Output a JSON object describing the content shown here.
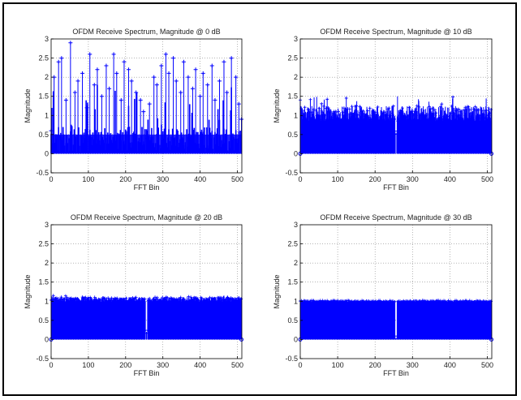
{
  "chart_data": [
    {
      "type": "stem",
      "title": "OFDM Receive Spectrum, Magnitude @ 0 dB",
      "xlabel": "FFT Bin",
      "ylabel": "Magnitude",
      "xlim": [
        0,
        512
      ],
      "ylim": [
        -0.5,
        3
      ],
      "xticks": [
        "0",
        "100",
        "200",
        "300",
        "400",
        "500"
      ],
      "yticks": [
        "-0.5",
        "0",
        "0.5",
        "1",
        "1.5",
        "2",
        "2.5",
        "3"
      ],
      "grid": true,
      "color": "#0000ff",
      "series": [
        {
          "bins": [
            0,
            8,
            20,
            28,
            40,
            52,
            64,
            72,
            84,
            96,
            104,
            116,
            124,
            136,
            148,
            156,
            168,
            176,
            188,
            196,
            208,
            216,
            228,
            240,
            248,
            256,
            264,
            276,
            284,
            296,
            308,
            316,
            328,
            336,
            348,
            356,
            368,
            380,
            388,
            400,
            408,
            420,
            432,
            440,
            452,
            464,
            472,
            484,
            496,
            504,
            511
          ],
          "magnitude": [
            0.6,
            2.0,
            2.4,
            2.5,
            1.4,
            2.9,
            1.6,
            1.9,
            2.1,
            1.2,
            2.6,
            1.8,
            2.2,
            1.5,
            2.3,
            1.7,
            2.6,
            2.1,
            1.4,
            2.4,
            2.2,
            1.9,
            1.6,
            1.4,
            1.1,
            0.4,
            1.3,
            2.0,
            1.8,
            2.3,
            2.6,
            2.1,
            2.5,
            1.9,
            1.6,
            2.4,
            2.0,
            1.7,
            2.2,
            1.5,
            2.1,
            1.8,
            2.3,
            1.4,
            1.9,
            2.4,
            1.6,
            2.5,
            2.0,
            1.3,
            0.9
          ],
          "noise_level": 0.7
        }
      ]
    },
    {
      "type": "stem",
      "title": "OFDM Receive Spectrum, Magnitude @ 10 dB",
      "xlabel": "FFT Bin",
      "ylabel": "Magnitude",
      "xlim": [
        0,
        512
      ],
      "ylim": [
        -0.5,
        3
      ],
      "xticks": [
        "0",
        "100",
        "200",
        "300",
        "400",
        "500"
      ],
      "yticks": [
        "-0.5",
        "0",
        "0.5",
        "1",
        "1.5",
        "2",
        "2.5",
        "3"
      ],
      "grid": true,
      "color": "#0000ff",
      "series": [
        {
          "envelope_mean": 1.05,
          "envelope_spread": 0.2,
          "peak_max": 1.5,
          "null_bin": 256,
          "null_level": 0.55,
          "edge_floor": 0.0
        }
      ]
    },
    {
      "type": "stem",
      "title": "OFDM Receive Spectrum, Magnitude @ 20 dB",
      "xlabel": "FFT Bin",
      "ylabel": "Magnitude",
      "xlim": [
        0,
        512
      ],
      "ylim": [
        -0.5,
        3
      ],
      "xticks": [
        "0",
        "100",
        "200",
        "300",
        "400",
        "500"
      ],
      "yticks": [
        "-0.5",
        "0",
        "0.5",
        "1",
        "1.5",
        "2",
        "2.5",
        "3"
      ],
      "grid": true,
      "color": "#0000ff",
      "series": [
        {
          "envelope_mean": 1.05,
          "envelope_spread": 0.06,
          "peak_max": 1.15,
          "null_bin": 256,
          "null_level": 0.2,
          "edge_floor": 0.0
        }
      ]
    },
    {
      "type": "stem",
      "title": "OFDM Receive Spectrum, Magnitude @ 30 dB",
      "xlabel": "FFT Bin",
      "ylabel": "Magnitude",
      "xlim": [
        0,
        512
      ],
      "ylim": [
        -0.5,
        3
      ],
      "xticks": [
        "0",
        "100",
        "200",
        "300",
        "400",
        "500"
      ],
      "yticks": [
        "-0.5",
        "0",
        "0.5",
        "1",
        "1.5",
        "2",
        "2.5",
        "3"
      ],
      "grid": true,
      "color": "#0000ff",
      "series": [
        {
          "envelope_mean": 1.0,
          "envelope_spread": 0.02,
          "peak_max": 1.03,
          "null_bin": 256,
          "null_level": 0.05,
          "edge_floor": 0.0
        }
      ]
    }
  ]
}
